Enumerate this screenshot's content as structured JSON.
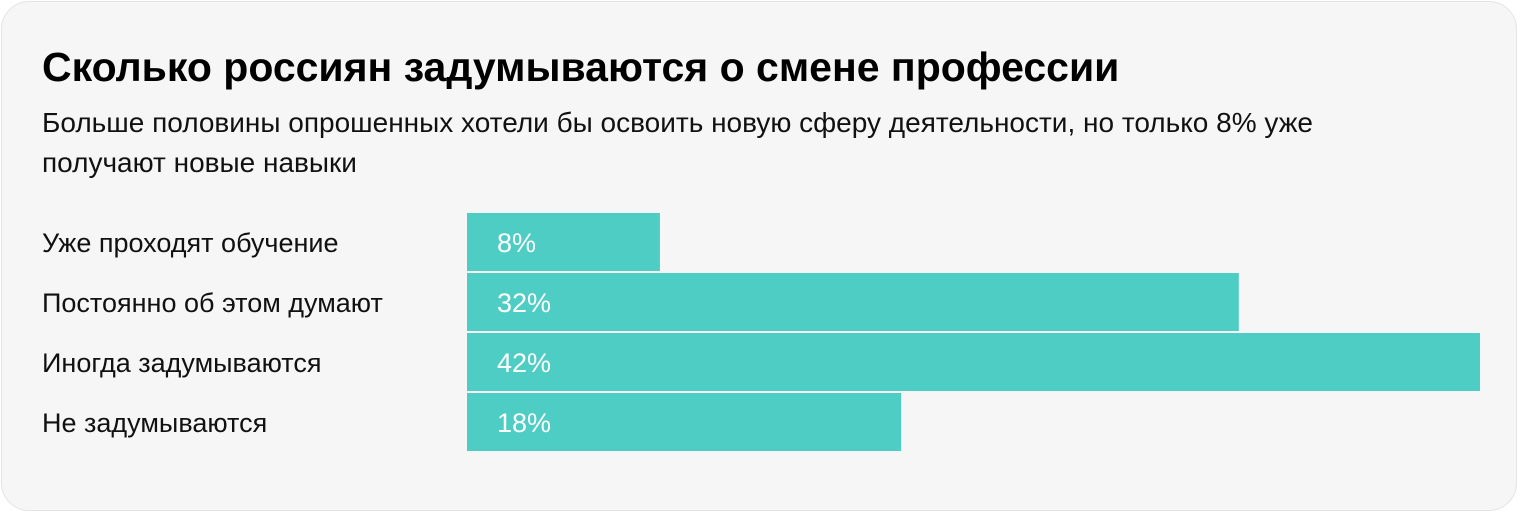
{
  "colors": {
    "bar": "#4ecdc4",
    "background": "#f6f6f6",
    "text": "#111111",
    "value_text": "#ffffff"
  },
  "chart_data": {
    "type": "bar",
    "orientation": "horizontal",
    "title": "Сколько россиян задумываются о смене профессии",
    "subtitle": "Больше половины опрошенных хотели бы освоить новую сферу деятельности, но только 8% уже получают новые навыки",
    "categories": [
      "Уже проходят обучение",
      "Постоянно об этом думают",
      "Иногда задумываются",
      "Не задумываются"
    ],
    "values": [
      8,
      32,
      42,
      18
    ],
    "value_labels": [
      "8%",
      "32%",
      "42%",
      "18%"
    ],
    "unit": "%",
    "xlim": [
      0,
      42
    ],
    "grid": false,
    "legend": "none"
  }
}
